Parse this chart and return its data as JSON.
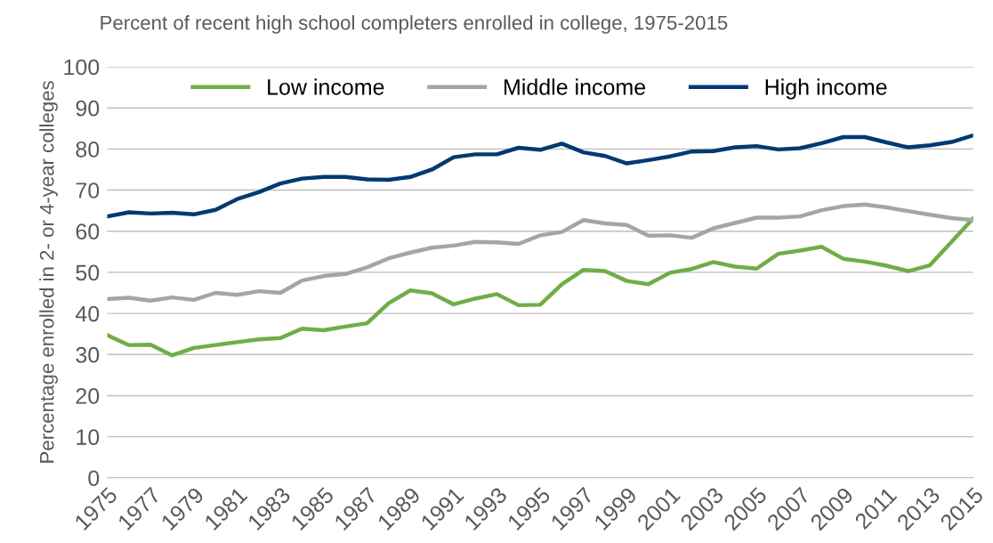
{
  "chart_data": {
    "type": "line",
    "title": "Percent of recent high school completers enrolled in college, 1975-2015",
    "ylabel": "Percentage enrolled in 2- or 4-year colleges",
    "x": [
      1975,
      1976,
      1977,
      1978,
      1979,
      1980,
      1981,
      1982,
      1983,
      1984,
      1985,
      1986,
      1987,
      1988,
      1989,
      1990,
      1991,
      1992,
      1993,
      1994,
      1995,
      1996,
      1997,
      1998,
      1999,
      2000,
      2001,
      2002,
      2003,
      2004,
      2005,
      2006,
      2007,
      2008,
      2009,
      2010,
      2011,
      2012,
      2013,
      2014,
      2015
    ],
    "series": [
      {
        "name": "Low income",
        "color": "#70ad47",
        "values": [
          34.7,
          32.3,
          32.4,
          29.8,
          31.6,
          32.3,
          33.0,
          33.7,
          34.0,
          36.3,
          35.9,
          36.8,
          37.6,
          42.5,
          45.6,
          44.9,
          42.2,
          43.6,
          44.7,
          42.0,
          42.1,
          47.1,
          50.6,
          50.3,
          47.9,
          47.1,
          49.9,
          50.8,
          52.5,
          51.4,
          50.9,
          54.5,
          55.3,
          56.2,
          53.3,
          52.6,
          51.6,
          50.3,
          51.7,
          57.4,
          63.1
        ]
      },
      {
        "name": "Middle income",
        "color": "#a5a5a5",
        "values": [
          43.5,
          43.8,
          43.1,
          43.9,
          43.3,
          45.0,
          44.5,
          45.4,
          45.0,
          48.0,
          49.1,
          49.6,
          51.2,
          53.4,
          54.8,
          56.0,
          56.5,
          57.4,
          57.3,
          56.9,
          59.0,
          59.8,
          62.7,
          61.9,
          61.5,
          58.9,
          59.0,
          58.4,
          60.7,
          62.0,
          63.3,
          63.3,
          63.6,
          65.1,
          66.1,
          66.5,
          65.8,
          64.9,
          64.0,
          63.2,
          62.7
        ]
      },
      {
        "name": "High income",
        "color": "#003a70",
        "values": [
          63.6,
          64.6,
          64.3,
          64.5,
          64.1,
          65.2,
          67.8,
          69.5,
          71.6,
          72.8,
          73.2,
          73.2,
          72.6,
          72.5,
          73.2,
          75.0,
          78.0,
          78.7,
          78.7,
          80.3,
          79.8,
          81.3,
          79.2,
          78.3,
          76.5,
          77.3,
          78.2,
          79.4,
          79.5,
          80.4,
          80.7,
          79.9,
          80.2,
          81.4,
          82.9,
          82.9,
          81.6,
          80.4,
          80.9,
          81.7,
          83.3
        ]
      }
    ],
    "xlim": [
      1975,
      2015
    ],
    "xticks": [
      1975,
      1977,
      1979,
      1981,
      1983,
      1985,
      1987,
      1989,
      1991,
      1993,
      1995,
      1997,
      1999,
      2001,
      2003,
      2005,
      2007,
      2009,
      2011,
      2013,
      2015
    ],
    "ylim": [
      0,
      100
    ],
    "yticks": [
      0,
      10,
      20,
      30,
      40,
      50,
      60,
      70,
      80,
      90,
      100
    ],
    "grid": "y",
    "legend": "top",
    "marker": "none",
    "line_style": "solid"
  }
}
